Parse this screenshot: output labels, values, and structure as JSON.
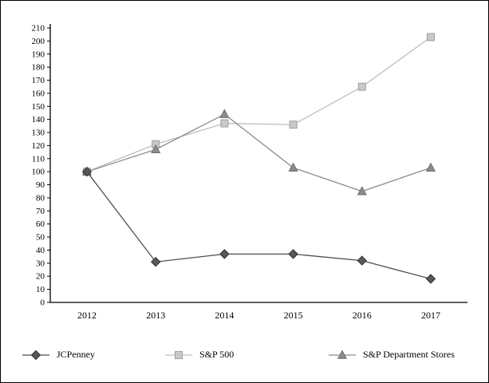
{
  "figure": {
    "background": "#ffffff",
    "border_color": "#000000"
  },
  "chart_data": {
    "type": "line",
    "title": "",
    "xlabel": "",
    "ylabel": "",
    "x": [
      "2012",
      "2013",
      "2014",
      "2015",
      "2016",
      "2017"
    ],
    "ylim": [
      0,
      210
    ],
    "ytick_step": 10,
    "yticks": [
      0,
      10,
      20,
      30,
      40,
      50,
      60,
      70,
      80,
      90,
      100,
      110,
      120,
      130,
      140,
      150,
      160,
      170,
      180,
      190,
      200,
      210
    ],
    "grid": false,
    "legend_position": "bottom",
    "series": [
      {
        "name": "JCPenney",
        "marker": "diamond",
        "values": [
          100,
          31,
          37,
          37,
          32,
          18
        ],
        "line_color": "#4d4d4d",
        "fill_color": "#56585c",
        "edge_color": "#303030"
      },
      {
        "name": "S&P 500",
        "marker": "square",
        "values": [
          100,
          121,
          137,
          136,
          165,
          203
        ],
        "line_color": "#bfbfbf",
        "fill_color": "#c9c9c9",
        "edge_color": "#9e9e9e"
      },
      {
        "name": "S&P Department Stores",
        "marker": "triangle",
        "values": [
          100,
          117,
          144,
          103,
          85,
          103
        ],
        "line_color": "#8c8c8c",
        "fill_color": "#8c8c8c",
        "edge_color": "#6b6b6b"
      }
    ]
  }
}
